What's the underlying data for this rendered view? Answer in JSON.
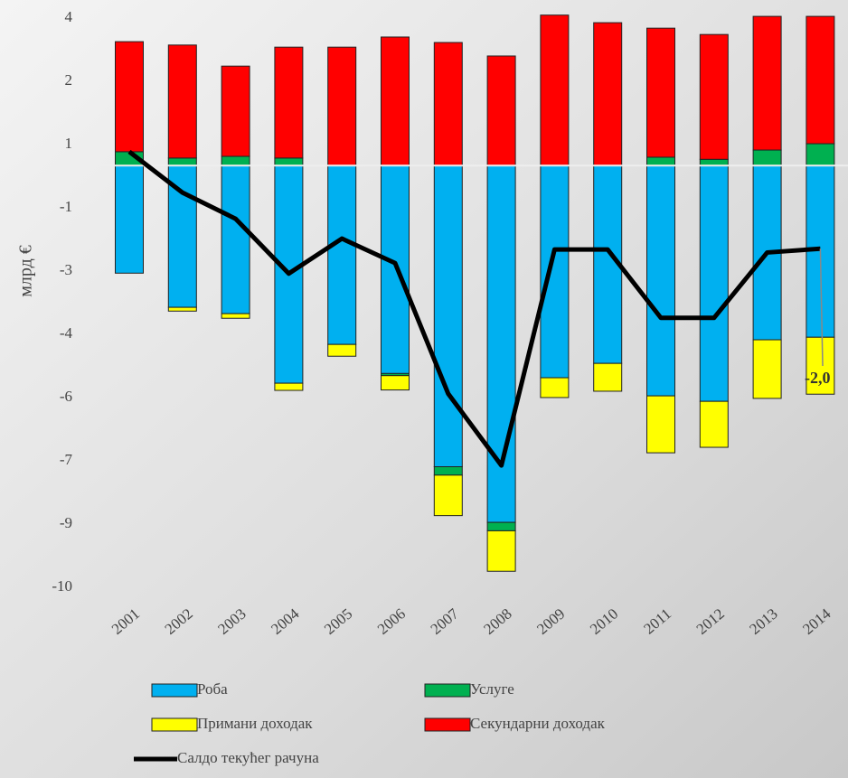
{
  "chart_data": {
    "type": "bar",
    "stacked": true,
    "y_label": "млрд €",
    "categories": [
      "2001",
      "2002",
      "2003",
      "2004",
      "2005",
      "2006",
      "2007",
      "2008",
      "2009",
      "2010",
      "2011",
      "2012",
      "2013",
      "2014"
    ],
    "series": [
      {
        "name": "Роба",
        "color": "#00b0f0",
        "values": [
          -2.55,
          -3.36,
          -3.51,
          -5.16,
          -4.24,
          -4.93,
          -7.14,
          -8.46,
          -5.03,
          -4.69,
          -5.46,
          -5.59,
          -4.13,
          -4.07
        ]
      },
      {
        "name": "Услуге",
        "color": "#00b050",
        "values": [
          0.33,
          0.18,
          0.22,
          0.18,
          0,
          -0.05,
          -0.2,
          -0.2,
          0,
          0,
          0.2,
          0.15,
          0.37,
          0.52
        ]
      },
      {
        "name": "Примани доходак",
        "color": "#ffff00",
        "values": [
          0,
          -0.09,
          -0.11,
          -0.17,
          -0.28,
          -0.34,
          -0.96,
          -0.96,
          -0.47,
          -0.66,
          -1.35,
          -1.09,
          -1.39,
          -1.35
        ]
      },
      {
        "name": "Секундарни доходак",
        "color": "#ff0000",
        "values": [
          2.61,
          2.68,
          2.14,
          2.63,
          2.81,
          3.05,
          2.92,
          2.6,
          3.57,
          3.39,
          3.06,
          2.96,
          3.17,
          3.02
        ]
      },
      {
        "name": "Салдо текућег рачуна",
        "color": "#000000",
        "type": "line",
        "values": [
          0.33,
          -0.64,
          -1.26,
          -2.56,
          -1.73,
          -2.31,
          -5.41,
          -7.11,
          -1.99,
          -1.99,
          -3.61,
          -3.61,
          -2.06,
          -1.97
        ],
        "value_labels": [
          null,
          null,
          null,
          null,
          null,
          null,
          null,
          null,
          null,
          null,
          null,
          null,
          null,
          "-2,0"
        ]
      }
    ],
    "ylim": [
      -10.2,
      3.9
    ],
    "yticks": [
      {
        "value": 3.5,
        "label": "4"
      },
      2,
      {
        "value": 0.5,
        "label": "1"
      },
      -1,
      {
        "value": -2.5,
        "label": "-3"
      },
      -4,
      {
        "value": -5.5,
        "label": "-6"
      },
      -7,
      {
        "value": -8.5,
        "label": "-9"
      },
      -10
    ]
  }
}
